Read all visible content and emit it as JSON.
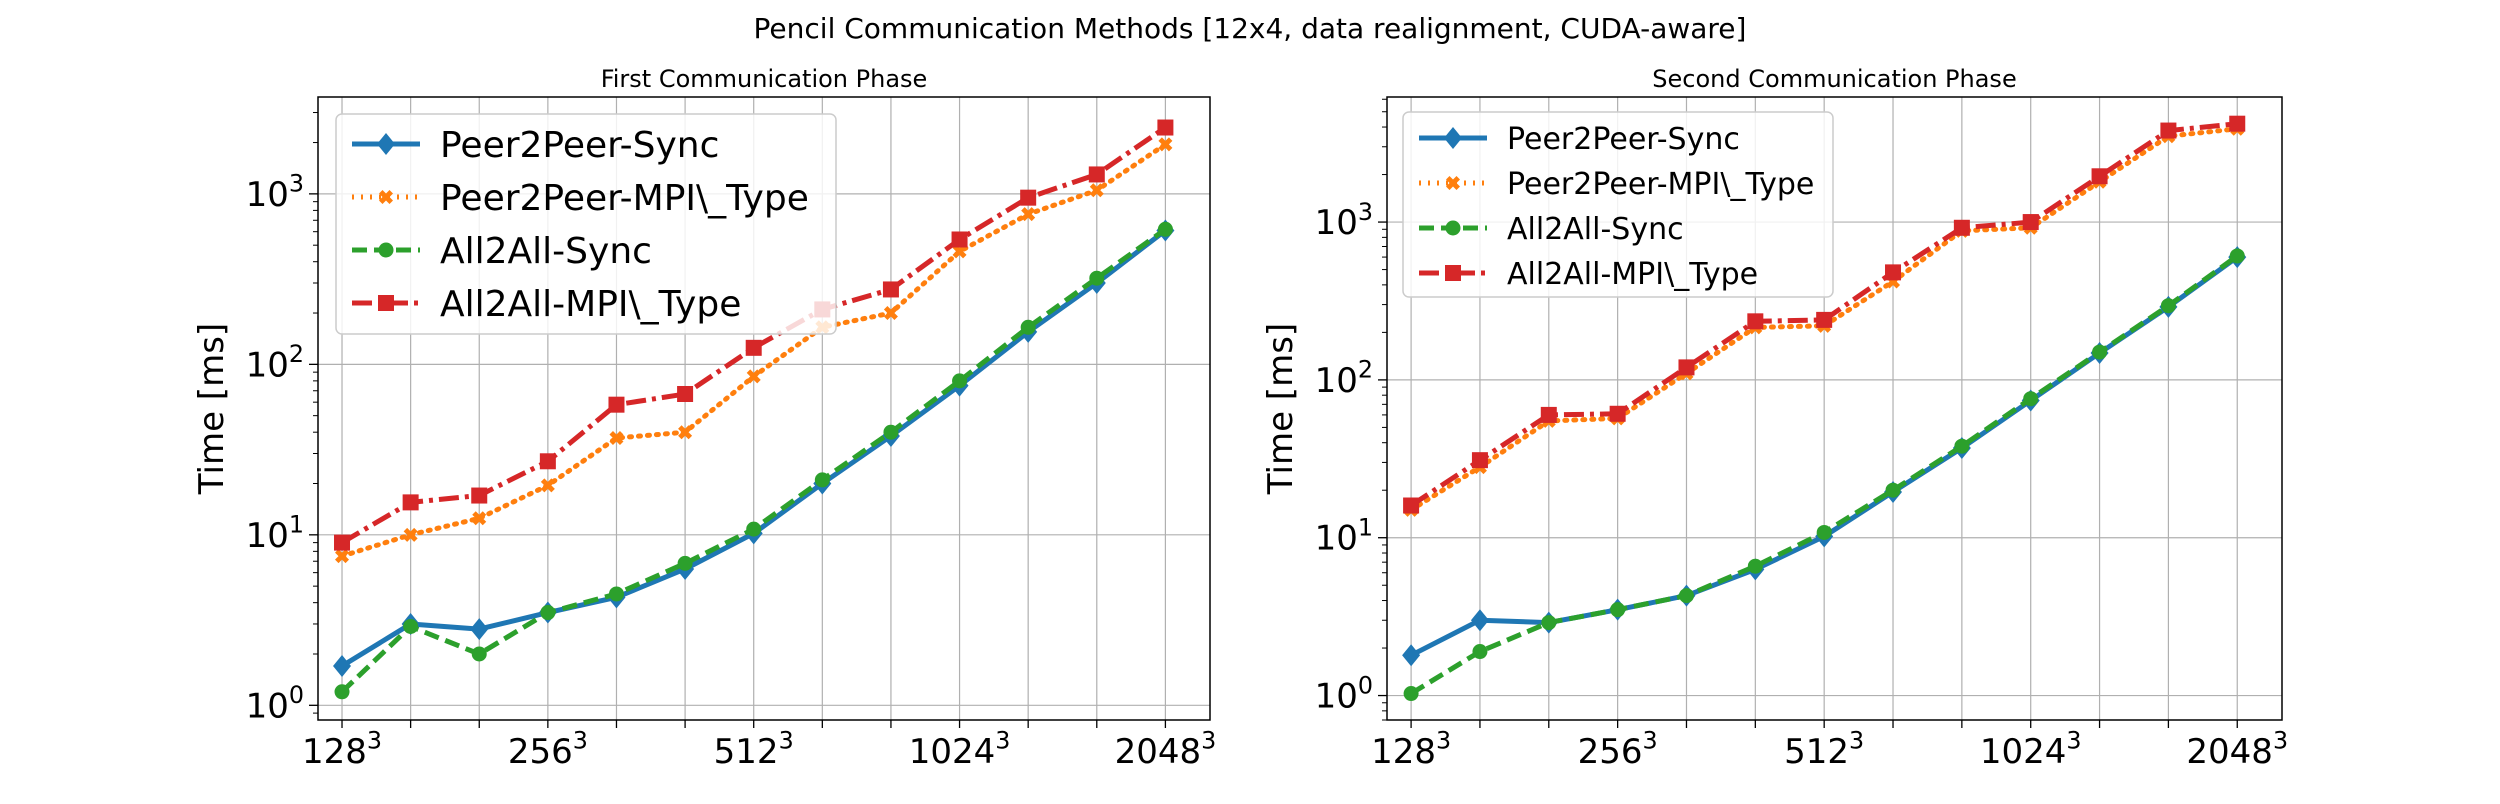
{
  "figure": {
    "suptitle": "Pencil Communication Methods [12x4, data realignment, CUDA-aware]"
  },
  "chart_data": [
    {
      "type": "line",
      "title": "First Communication Phase",
      "xlabel": "",
      "ylabel": "Time [ms]",
      "yscale": "log",
      "ylim": [
        0.82,
        3700
      ],
      "xlim": [
        0.65,
        13.65
      ],
      "grid": true,
      "legend_position": "upper-left",
      "x": [
        1,
        2,
        3,
        4,
        5,
        6,
        7,
        8,
        9,
        10,
        11,
        12,
        13
      ],
      "xticks": [
        {
          "x": 1,
          "base": "128",
          "exp": "3"
        },
        {
          "x": 4,
          "base": "256",
          "exp": "3"
        },
        {
          "x": 7,
          "base": "512",
          "exp": "3"
        },
        {
          "x": 10,
          "base": "1024",
          "exp": "3"
        },
        {
          "x": 13,
          "base": "2048",
          "exp": "3"
        }
      ],
      "yticks": [
        {
          "v": 1,
          "base": "10",
          "exp": "0"
        },
        {
          "v": 10,
          "base": "10",
          "exp": "1"
        },
        {
          "v": 100,
          "base": "10",
          "exp": "2"
        },
        {
          "v": 1000,
          "base": "10",
          "exp": "3"
        }
      ],
      "series": [
        {
          "name": "Peer2Peer-Sync",
          "color": "#1f77b4",
          "marker": "diamond",
          "dash": "",
          "values": [
            1.7,
            3.0,
            2.8,
            3.5,
            4.3,
            6.3,
            10.2,
            20.0,
            38.0,
            75.0,
            155.0,
            300.0,
            610.0
          ]
        },
        {
          "name": "Peer2Peer-MPI\\_Type",
          "color": "#ff7f0e",
          "marker": "x",
          "dash": "2 7",
          "values": [
            7.5,
            10.0,
            12.5,
            19.5,
            37.0,
            40.0,
            85.0,
            165.0,
            200.0,
            460.0,
            760.0,
            1050.0,
            1950.0
          ]
        },
        {
          "name": "All2All-Sync",
          "color": "#2ca02c",
          "marker": "circle",
          "dash": "15 7",
          "values": [
            1.2,
            2.9,
            2.0,
            3.5,
            4.5,
            6.8,
            10.8,
            21.0,
            40.0,
            80.0,
            165.0,
            320.0,
            620.0
          ]
        },
        {
          "name": "All2All-MPI\\_Type",
          "color": "#d62728",
          "marker": "square",
          "dash": "20 6 4 6",
          "values": [
            9.0,
            15.5,
            17.0,
            27.0,
            58.0,
            67.0,
            125.0,
            210.0,
            275.0,
            540.0,
            950.0,
            1300.0,
            2450.0
          ]
        }
      ]
    },
    {
      "type": "line",
      "title": "Second Communication Phase",
      "xlabel": "",
      "ylabel": "Time [ms]",
      "yscale": "log",
      "ylim": [
        0.7,
        6200
      ],
      "xlim": [
        0.65,
        13.65
      ],
      "grid": true,
      "legend_position": "upper-left",
      "x": [
        1,
        2,
        3,
        4,
        5,
        6,
        7,
        8,
        9,
        10,
        11,
        12,
        13
      ],
      "xticks": [
        {
          "x": 1,
          "base": "128",
          "exp": "3"
        },
        {
          "x": 4,
          "base": "256",
          "exp": "3"
        },
        {
          "x": 7,
          "base": "512",
          "exp": "3"
        },
        {
          "x": 10,
          "base": "1024",
          "exp": "3"
        },
        {
          "x": 13,
          "base": "2048",
          "exp": "3"
        }
      ],
      "yticks": [
        {
          "v": 1,
          "base": "10",
          "exp": "0"
        },
        {
          "v": 10,
          "base": "10",
          "exp": "1"
        },
        {
          "v": 100,
          "base": "10",
          "exp": "2"
        },
        {
          "v": 1000,
          "base": "10",
          "exp": "3"
        }
      ],
      "series": [
        {
          "name": "Peer2Peer-Sync",
          "color": "#1f77b4",
          "marker": "diamond",
          "dash": "",
          "values": [
            1.8,
            3.0,
            2.9,
            3.5,
            4.3,
            6.3,
            10.2,
            19.5,
            37.0,
            74.0,
            148.0,
            290.0,
            600.0
          ]
        },
        {
          "name": "Peer2Peer-MPI\\_Type",
          "color": "#ff7f0e",
          "marker": "x",
          "dash": "2 7",
          "values": [
            15.0,
            28.0,
            55.0,
            57.0,
            110.0,
            215.0,
            220.0,
            420.0,
            880.0,
            920.0,
            1800.0,
            3500.0,
            3900.0
          ]
        },
        {
          "name": "All2All-Sync",
          "color": "#2ca02c",
          "marker": "circle",
          "dash": "15 7",
          "values": [
            1.03,
            1.9,
            2.9,
            3.5,
            4.3,
            6.6,
            10.8,
            20.0,
            38.0,
            76.0,
            150.0,
            295.0,
            610.0
          ]
        },
        {
          "name": "All2All-MPI\\_Type",
          "color": "#d62728",
          "marker": "square",
          "dash": "20 6 4 6",
          "values": [
            16.0,
            31.0,
            60.0,
            61.0,
            120.0,
            235.0,
            240.0,
            480.0,
            920.0,
            1000.0,
            1950.0,
            3800.0,
            4200.0
          ]
        }
      ]
    }
  ]
}
